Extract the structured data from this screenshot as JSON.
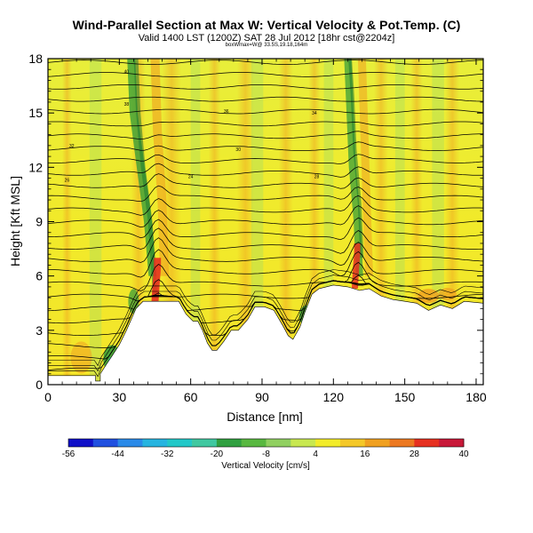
{
  "chart_data": {
    "type": "heatmap",
    "title": "Wind-Parallel Section at Max W: Vertical Velocity & Pot.Temp. (C)",
    "subtitle": "Valid 1400 LST (1200Z) SAT 28 Jul 2012 [18hr cst@2204z]",
    "subtitle2": "boxWmax=W@ 33.5S,19.18,164m",
    "xlabel": "Distance [nm]",
    "ylabel": "Height [Kft MSL]",
    "x_ticks": [
      0,
      30,
      60,
      90,
      120,
      150,
      180
    ],
    "y_ticks": [
      0,
      3,
      6,
      9,
      12,
      15,
      18
    ],
    "xlim": [
      0,
      183
    ],
    "ylim": [
      0,
      18
    ],
    "colorbar_label": "Vertical Velocity [cm/s]",
    "colorbar_ticks": [
      "-56",
      "-44",
      "-32",
      "-20",
      "-8",
      "4",
      "16",
      "28",
      "40"
    ],
    "colorbar_levels": [
      -56,
      -50,
      -44,
      -38,
      -32,
      -26,
      -20,
      -14,
      -8,
      -2,
      4,
      10,
      16,
      22,
      28,
      34,
      40
    ],
    "colors": {
      "vmin": "#1010c8",
      "blue": "#2a6fe8",
      "cyan": "#22c4cc",
      "green_light": "#9adc6a",
      "green_dark": "#2e9a3a",
      "yellow": "#f2ec2a",
      "orange": "#f0a020",
      "red": "#e63020",
      "vmax": "#b0106a",
      "terrain": "#ffffff"
    },
    "updraft_cores_nm": [
      46,
      130
    ],
    "terrain_profile": [
      [
        0,
        0.5
      ],
      [
        20,
        0.5
      ],
      [
        20,
        0.2
      ],
      [
        22,
        0.2
      ],
      [
        22,
        0.6
      ],
      [
        25,
        1.2
      ],
      [
        27,
        1.6
      ],
      [
        30,
        2.2
      ],
      [
        33,
        3.0
      ],
      [
        37,
        4.2
      ],
      [
        40,
        4.6
      ],
      [
        45,
        4.6
      ],
      [
        50,
        4.6
      ],
      [
        55,
        4.6
      ],
      [
        58,
        3.9
      ],
      [
        61,
        3.5
      ],
      [
        63,
        3.5
      ],
      [
        65,
        3.0
      ],
      [
        67,
        2.3
      ],
      [
        69,
        1.9
      ],
      [
        71,
        1.9
      ],
      [
        74,
        2.4
      ],
      [
        77,
        3.0
      ],
      [
        80,
        3.0
      ],
      [
        84,
        3.6
      ],
      [
        87,
        4.3
      ],
      [
        91,
        4.3
      ],
      [
        95,
        4.1
      ],
      [
        99,
        3.2
      ],
      [
        101,
        2.7
      ],
      [
        103,
        2.5
      ],
      [
        106,
        3.2
      ],
      [
        108,
        4.0
      ],
      [
        111,
        5.0
      ],
      [
        114,
        5.3
      ],
      [
        120,
        5.5
      ],
      [
        126,
        5.4
      ],
      [
        131,
        5.2
      ],
      [
        135,
        5.3
      ],
      [
        140,
        4.9
      ],
      [
        145,
        4.7
      ],
      [
        150,
        4.6
      ],
      [
        155,
        4.5
      ],
      [
        160,
        4.1
      ],
      [
        165,
        4.4
      ],
      [
        170,
        4.2
      ],
      [
        175,
        4.6
      ],
      [
        183,
        4.5
      ]
    ],
    "contour_labels": [
      "40",
      "38",
      "36",
      "34",
      "32",
      "30",
      "28",
      "26",
      "24"
    ]
  }
}
